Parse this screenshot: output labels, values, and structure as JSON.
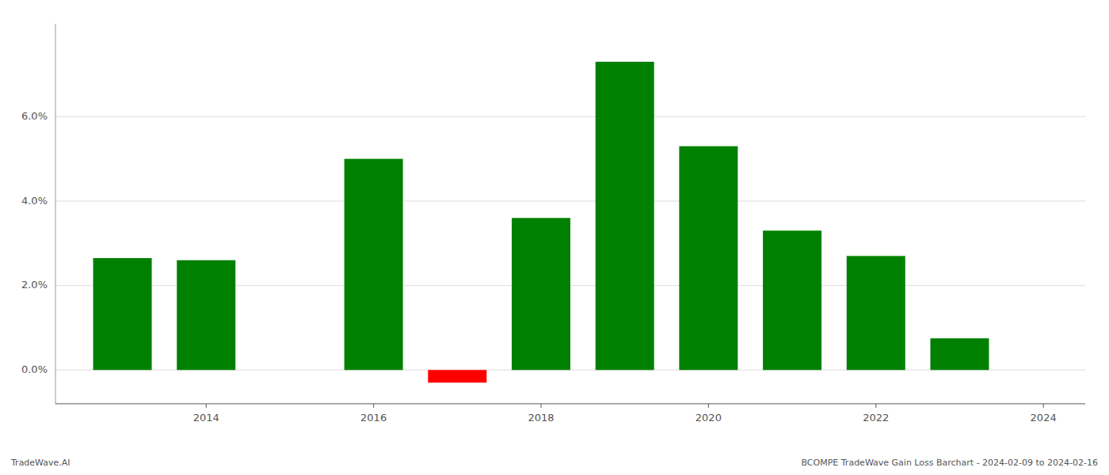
{
  "chart_data": {
    "type": "bar",
    "x": [
      2013,
      2014,
      2016,
      2017,
      2018,
      2019,
      2020,
      2021,
      2022,
      2023
    ],
    "values": [
      0.0265,
      0.026,
      0.05,
      -0.003,
      0.036,
      0.073,
      0.053,
      0.033,
      0.027,
      0.0075
    ],
    "colors": [
      "#008000",
      "#008000",
      "#008000",
      "#ff0000",
      "#008000",
      "#008000",
      "#008000",
      "#008000",
      "#008000",
      "#008000"
    ],
    "xlim": [
      2012.2,
      2024.5
    ],
    "xticks": [
      2014,
      2016,
      2018,
      2020,
      2022,
      2024
    ],
    "ylim": [
      -0.008,
      0.082
    ],
    "yticks": [
      {
        "value": 0.0,
        "label": "0.0%"
      },
      {
        "value": 0.02,
        "label": "2.0%"
      },
      {
        "value": 0.04,
        "label": "4.0%"
      },
      {
        "value": 0.06,
        "label": "6.0%"
      }
    ],
    "grid": true,
    "annotations": [
      "TradeWave.AI",
      "BCOMPE TradeWave Gain Loss Barchart - 2024-02-09 to 2024-02-16"
    ]
  }
}
